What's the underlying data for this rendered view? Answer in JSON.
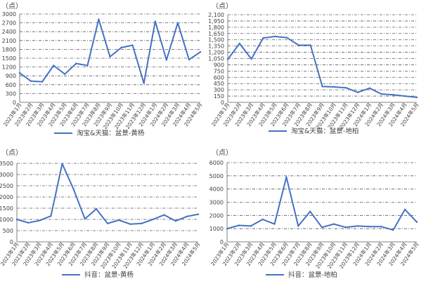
{
  "colors": {
    "line": "#4472C4",
    "axis": "#808080",
    "grid": "#555555",
    "text": "#404040"
  },
  "chart_data": [
    {
      "type": "line",
      "unit": "（点）",
      "ylim": [
        0,
        3000
      ],
      "yticks": [
        "0",
        "300",
        "600",
        "900",
        "1200",
        "1500",
        "1800",
        "2100",
        "2400",
        "2700",
        "3000"
      ],
      "categories": [
        "2023年1月",
        "2023年2月",
        "2023年3月",
        "2023年4月",
        "2023年5月",
        "2023年6月",
        "2023年7月",
        "2023年8月",
        "2023年9月",
        "2023年10月",
        "2023年11月",
        "2023年12月",
        "2024年1月",
        "2024年2月",
        "2024年3月",
        "2024年4月",
        "2024年5月"
      ],
      "grid": true,
      "legend_position": "bottom",
      "series": [
        {
          "name": "淘宝&天猫：盆景-黄杨",
          "values": [
            1000,
            720,
            700,
            1250,
            960,
            1320,
            1250,
            2820,
            1550,
            1860,
            1940,
            650,
            2750,
            1440,
            2700,
            1450,
            1710
          ]
        }
      ]
    },
    {
      "type": "line",
      "unit": "（点）",
      "ylim": [
        0,
        2100
      ],
      "yticks": [
        "0",
        "150",
        "300",
        "450",
        "600",
        "750",
        "900",
        "1,050",
        "1,200",
        "1,350",
        "1,500",
        "1,650",
        "1,800",
        "1,950",
        "2,100"
      ],
      "categories": [
        "2023年1月",
        "2023年2月",
        "2023年3月",
        "2023年4月",
        "2023年5月",
        "2023年6月",
        "2023年7月",
        "2023年8月",
        "2023年9月",
        "2023年10月",
        "2023年11月",
        "2023年12月",
        "2024年1月",
        "2024年2月",
        "2024年3月",
        "2024年4月",
        "2024年5月"
      ],
      "grid": true,
      "legend_position": "bottom",
      "series": [
        {
          "name": "淘宝&天猫：盆景-地柏",
          "values": [
            1030,
            1410,
            1040,
            1540,
            1580,
            1550,
            1370,
            1370,
            380,
            370,
            350,
            240,
            340,
            200,
            180,
            150,
            120
          ]
        }
      ]
    },
    {
      "type": "line",
      "unit": "（点）",
      "ylim": [
        0,
        3500
      ],
      "yticks": [
        "0",
        "500",
        "1000",
        "1500",
        "2000",
        "2500",
        "3000",
        "3500"
      ],
      "categories": [
        "2023年1月",
        "2023年2月",
        "2023年3月",
        "2023年4月",
        "2023年5月",
        "2023年6月",
        "2023年7月",
        "2023年8月",
        "2023年9月",
        "2023年10月",
        "2023年11月",
        "2023年12月",
        "2024年1月",
        "2024年2月",
        "2024年3月",
        "2024年4月",
        "2024年5月"
      ],
      "grid": true,
      "legend_position": "bottom",
      "series": [
        {
          "name": "抖音：盆景-黄杨",
          "values": [
            1000,
            850,
            950,
            1150,
            3480,
            2350,
            1020,
            1470,
            820,
            970,
            790,
            820,
            1000,
            1200,
            930,
            1130,
            1230
          ]
        }
      ]
    },
    {
      "type": "line",
      "unit": "（点）",
      "ylim": [
        0,
        6000
      ],
      "yticks": [
        "0",
        "1000",
        "2000",
        "3000",
        "4000",
        "5000",
        "6000"
      ],
      "categories": [
        "2023年1月",
        "2023年2月",
        "2023年3月",
        "2023年4月",
        "2023年5月",
        "2023年6月",
        "2023年7月",
        "2023年8月",
        "2023年9月",
        "2023年10月",
        "2023年11月",
        "2023年12月",
        "2024年1月",
        "2024年2月",
        "2024年3月",
        "2024年4月",
        "2024年5月"
      ],
      "grid": true,
      "legend_position": "bottom",
      "series": [
        {
          "name": "抖音：盆景-地柏",
          "values": [
            1000,
            1250,
            1200,
            1700,
            1350,
            4900,
            1200,
            2300,
            1100,
            1350,
            1100,
            1200,
            1150,
            1150,
            900,
            2450,
            1500
          ]
        }
      ]
    }
  ]
}
